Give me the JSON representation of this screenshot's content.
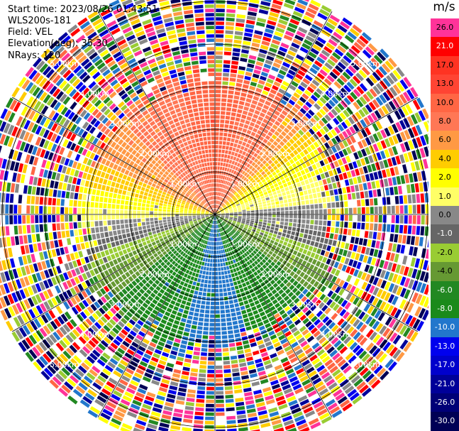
{
  "header": {
    "start_time": "Start time: 2023/08/26 01:43:51",
    "instrument": "WLS200s-181",
    "field": "Field: VEL",
    "elevation": "Elevation(deg): 35.30",
    "nrays": "NRays: 120"
  },
  "colorbar": {
    "unit": "m/s",
    "segments": [
      {
        "label": "26.0",
        "color": "#ff3399",
        "text_color": "#000000"
      },
      {
        "label": "21.0",
        "color": "#ff0000",
        "text_color": "#ffffff"
      },
      {
        "label": "17.0",
        "color": "#ff3322",
        "text_color": "#000000"
      },
      {
        "label": "13.0",
        "color": "#ff4433",
        "text_color": "#000000"
      },
      {
        "label": "10.0",
        "color": "#ff6644",
        "text_color": "#000000"
      },
      {
        "label": "8.0",
        "color": "#ff7755",
        "text_color": "#000000"
      },
      {
        "label": "6.0",
        "color": "#ff9944",
        "text_color": "#000000"
      },
      {
        "label": "4.0",
        "color": "#ffcc00",
        "text_color": "#000000"
      },
      {
        "label": "2.0",
        "color": "#ffff00",
        "text_color": "#000000"
      },
      {
        "label": "1.0",
        "color": "#ffff66",
        "text_color": "#000000"
      },
      {
        "label": "0.0",
        "color": "#888888",
        "text_color": "#000000"
      },
      {
        "label": "-1.0",
        "color": "#666666",
        "text_color": "#ffffff"
      },
      {
        "label": "-2.0",
        "color": "#99cc33",
        "text_color": "#000000"
      },
      {
        "label": "-4.0",
        "color": "#669933",
        "text_color": "#000000"
      },
      {
        "label": "-6.0",
        "color": "#228822",
        "text_color": "#ffffff"
      },
      {
        "label": "-8.0",
        "color": "#1a8a1a",
        "text_color": "#ffffff"
      },
      {
        "label": "-10.0",
        "color": "#2277cc",
        "text_color": "#ffffff"
      },
      {
        "label": "-13.0",
        "color": "#0000ee",
        "text_color": "#ffffff"
      },
      {
        "label": "-17.0",
        "color": "#0000cc",
        "text_color": "#ffffff"
      },
      {
        "label": "-21.0",
        "color": "#000099",
        "text_color": "#ffffff"
      },
      {
        "label": "-26.0",
        "color": "#000077",
        "text_color": "#ffffff"
      },
      {
        "label": "-30.0",
        "color": "#000055",
        "text_color": "#ffffff"
      }
    ]
  },
  "chart_data": {
    "type": "heatmap",
    "projection": "polar-ppi",
    "nrays": 120,
    "max_range_km": 5.5,
    "range_rings_km": [
      1.0,
      2.0,
      3.0,
      4.0,
      5.0
    ],
    "ring_labels": [
      "1.00km",
      "2.00km",
      "3.00km",
      "4.00km",
      "5.00km"
    ],
    "clean_region_km": {
      "north": 3.1,
      "south": 3.0,
      "east": 2.6,
      "west": 3.0
    },
    "velocity_by_azimuth": [
      {
        "azimuth_deg": 0,
        "velocity": 10.0
      },
      {
        "azimuth_deg": 30,
        "velocity": 8.0
      },
      {
        "azimuth_deg": 60,
        "velocity": 2.0
      },
      {
        "azimuth_deg": 75,
        "velocity": 1.0
      },
      {
        "azimuth_deg": 90,
        "velocity": 0.0
      },
      {
        "azimuth_deg": 105,
        "velocity": -1.0
      },
      {
        "azimuth_deg": 120,
        "velocity": -4.0
      },
      {
        "azimuth_deg": 150,
        "velocity": -8.0
      },
      {
        "azimuth_deg": 180,
        "velocity": -10.0
      },
      {
        "azimuth_deg": 210,
        "velocity": -8.0
      },
      {
        "azimuth_deg": 240,
        "velocity": -4.0
      },
      {
        "azimuth_deg": 255,
        "velocity": -1.0
      },
      {
        "azimuth_deg": 270,
        "velocity": 1.0
      },
      {
        "azimuth_deg": 300,
        "velocity": 6.0
      },
      {
        "azimuth_deg": 330,
        "velocity": 8.0
      },
      {
        "azimuth_deg": 360,
        "velocity": 10.0
      }
    ],
    "outer_noise_colors": [
      "#ff3399",
      "#ff0000",
      "#ff6644",
      "#ffcc00",
      "#ffff00",
      "#228822",
      "#99cc33",
      "#2277cc",
      "#0000ee",
      "#000099",
      "#000055",
      "#ff9944",
      "#888888",
      "#ffffff"
    ]
  }
}
